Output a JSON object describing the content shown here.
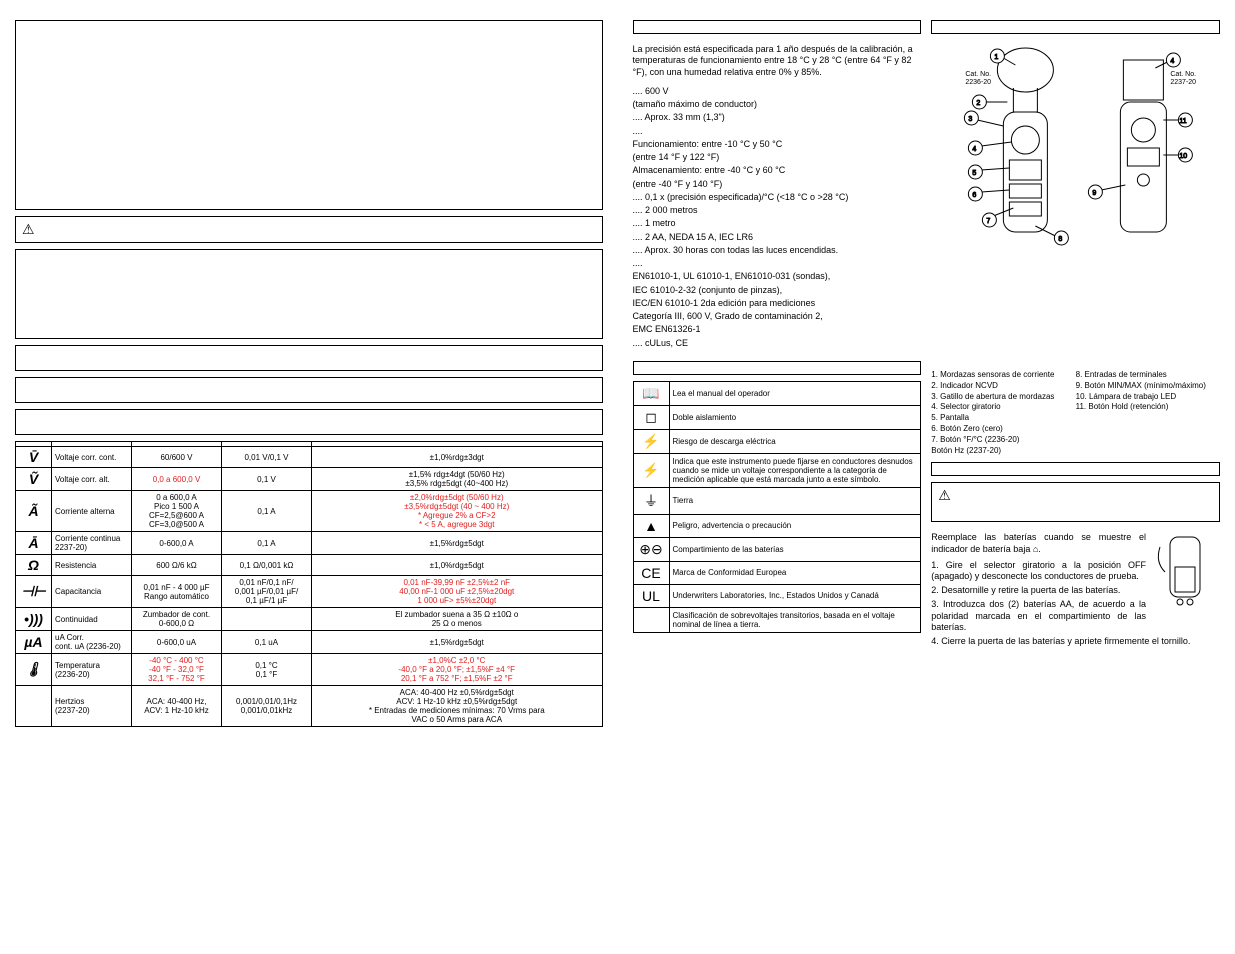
{
  "spec_table": {
    "rows": [
      {
        "sym": "V̄",
        "func": "Voltaje corr. cont.",
        "range": "60/600 V",
        "res": "0,01 V/0,1 V",
        "acc": "±1,0%rdg±3dgt",
        "sym_color": "#000",
        "acc_color": "#000"
      },
      {
        "sym": "Ṽ",
        "func": "Voltaje corr. alt.",
        "range": "0,0 a 600,0 V",
        "res": "0,1 V",
        "acc": "±1,5% rdg±4dgt (50/60 Hz)\n±3,5% rdg±5dgt (40~400 Hz)",
        "range_color": "#e02020"
      },
      {
        "sym": "Ã",
        "func": "Corriente alterna",
        "range": "0 a 600,0 A\nPico 1 500 A\nCF=2,5@600 A\nCF=3,0@500 A",
        "res": "0,1 A",
        "acc": "±2,0%rdg±5dgt (50/60 Hz)\n±3,5%rdg±5dgt (40 ~ 400 Hz)\n* Agregue 2% a CF>2\n* < 5 A, agregue 3dgt",
        "acc_color": "#e02020"
      },
      {
        "sym": "Ā",
        "func": "Corriente continua\n2237-20)",
        "range": "0-600,0 A",
        "res": "0,1 A",
        "acc": "±1,5%rdg±5dgt"
      },
      {
        "sym": "Ω",
        "func": "Resistencia",
        "range": "600 Ω/6 kΩ",
        "res": "0,1 Ω/0,001 kΩ",
        "acc": "±1,0%rdg±5dgt"
      },
      {
        "sym": "⊣⊢",
        "func": "Capacitancia",
        "range": "0,01 nF - 4 000 µF\nRango automático",
        "res": "0,01 nF/0,1 nF/\n0,001 µF/0,01 µF/\n0,1 µF/1 µF",
        "acc": "0,01 nF-39,99 nF ±2,5%±2 nF\n40,00 nF-1 000 uF ±2,5%±20dgt\n1 000 uF> ±5%±20dgt",
        "acc_color": "#e02020"
      },
      {
        "sym": "•)))",
        "func": "Continuidad",
        "range": "Zumbador de cont.\n0-600,0 Ω",
        "res": "",
        "acc": "El zumbador suena a 35 Ω ±10Ω o\n25 Ω o menos"
      },
      {
        "sym": "µA",
        "func": "uA Corr.\ncont. uA (2236-20)",
        "range": "0-600,0 uA",
        "res": "0,1 uA",
        "acc": "±1,5%rdg±5dgt"
      },
      {
        "sym": "🌡",
        "func": "Temperatura\n(2236-20)",
        "range": "-40 °C - 400 °C\n-40 °F - 32,0 °F\n32,1 °F - 752 °F",
        "res": "0,1 °C\n0,1 °F",
        "acc": "±1,0%C ±2,0 °C\n-40,0 °F a 20,0 °F; ±1,5%F ±4 °F\n20,1 °F a 752 °F; ±1,5%F ±2 °F",
        "acc_color": "#e02020",
        "range_color": "#e02020"
      },
      {
        "sym": "",
        "func": "Hertzios\n(2237-20)",
        "range": "ACA: 40-400 Hz,\nACV: 1 Hz-10 kHz",
        "res": "0,001/0,01/0,1Hz\n0,001/0,01kHz",
        "acc": "ACA: 40-400 Hz ±0,5%rdg±5dgt\nACV: 1 Hz-10 kHz ±0,5%rdg±5dgt\n* Entradas de mediciones mínimas: 70 Vrms para\nVAC o 50 Arms para ACA"
      }
    ]
  },
  "precision_intro": "La precisión está especificada para 1 año después de la calibración, a temperaturas de funcionamiento entre 18 °C y 28 °C (entre 64 °F y 82 °F), con una humedad relativa entre 0% y 85%.",
  "specs": [
    ".... 600 V",
    "(tamaño máximo de conductor)",
    ".... Aprox. 33 mm (1,3\")",
    "....",
    "Funcionamiento: entre -10 °C y 50 °C",
    "(entre 14 °F y 122 °F)",
    "Almacenamiento: entre -40 °C y 60 °C",
    "(entre -40 °F y 140 °F)",
    ".... 0,1 x (precisión especificada)/°C (<18 °C o >28 °C)",
    ".... 2 000 metros",
    ".... 1 metro",
    ".... 2 AA, NEDA 15 A, IEC LR6",
    ".... Aprox. 30 horas con todas las luces encendidas.",
    "....",
    "EN61010-1, UL 61010-1, EN61010-031 (sondas),",
    "IEC 61010-2-32 (conjunto de pinzas),",
    "IEC/EN 61010-1 2da edición para mediciones",
    "Categoría III, 600 V, Grado de contaminación 2,",
    "EMC EN61326-1",
    ".... cULus, CE"
  ],
  "symbols_table": [
    {
      "icon": "📖",
      "text": "Lea el manual del operador"
    },
    {
      "icon": "◻",
      "text": "Doble aislamiento"
    },
    {
      "icon": "⚡",
      "text": "Riesgo de descarga eléctrica"
    },
    {
      "icon": "⚡",
      "text": "Indica que este instrumento puede fijarse en conductores desnudos cuando se mide un voltaje correspondiente a la categoría de medición aplicable que está marcada junto a este símbolo."
    },
    {
      "icon": "⏚",
      "text": "Tierra"
    },
    {
      "icon": "▲",
      "text": "Peligro, advertencia o precaución"
    },
    {
      "icon": "⊕⊖",
      "text": "Compartimiento de las baterías"
    },
    {
      "icon": "CE",
      "text": "Marca de Conformidad Europea"
    },
    {
      "icon": "UL",
      "text": "Underwriters Laboratories, Inc., Estados Unidos y Canadá"
    },
    {
      "icon": "",
      "text": "Clasificación de sobrevoltajes transitorios, basada en el voltaje nominal de línea a tierra."
    }
  ],
  "diagram_callouts": {
    "left_label": "Cat. No.\n2236-20",
    "right_label": "Cat. No.\n2237-20",
    "numbers": [
      1,
      2,
      3,
      4,
      5,
      6,
      7,
      8,
      9,
      10,
      11
    ]
  },
  "legend_left": [
    "1. Mordazas sensoras de corriente",
    "2. Indicador NCVD",
    "3. Gatillo de abertura de mordazas",
    "4. Selector giratorio",
    "5. Pantalla",
    "6. Botón Zero (cero)",
    "7. Botón °F/°C (2236-20)\n    Botón Hz (2237-20)"
  ],
  "legend_right": [
    "8. Entradas de terminales",
    "9. Botón MIN/MAX (mínimo/máximo)",
    "10. Lámpara de trabajo LED",
    "11. Botón Hold (retención)"
  ],
  "battery": {
    "intro": "Reemplace las baterías cuando se muestre el indicador de batería baja ⌂.",
    "steps": [
      "1. Gire el selector giratorio a la posición OFF (apagado) y desconecte los conductores de prueba.",
      "2. Desatornille y retire la puerta de las baterías.",
      "3. Introduzca dos (2) baterías AA, de acuerdo a la polaridad marcada en el compartimiento de las baterías.",
      "4. Cierre la puerta de las baterías y apriete firmemente el tornillo."
    ]
  }
}
